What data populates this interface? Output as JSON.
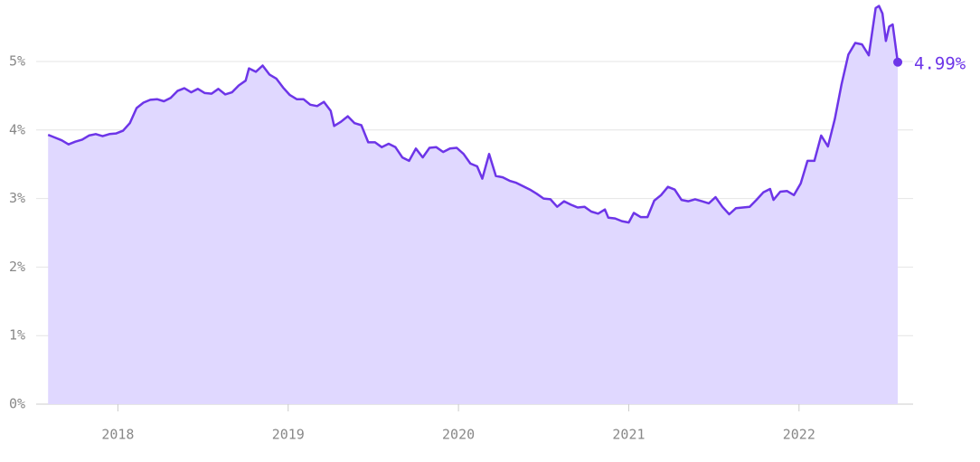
{
  "chart_data": {
    "type": "area",
    "x": [
      2017.59,
      2017.63,
      2017.67,
      2017.71,
      2017.75,
      2017.79,
      2017.83,
      2017.87,
      2017.91,
      2017.95,
      2017.99,
      2018.03,
      2018.07,
      2018.11,
      2018.15,
      2018.19,
      2018.23,
      2018.27,
      2018.31,
      2018.35,
      2018.39,
      2018.43,
      2018.47,
      2018.51,
      2018.55,
      2018.59,
      2018.63,
      2018.67,
      2018.71,
      2018.75,
      2018.77,
      2018.81,
      2018.85,
      2018.89,
      2018.93,
      2018.97,
      2019.01,
      2019.05,
      2019.09,
      2019.13,
      2019.17,
      2019.21,
      2019.25,
      2019.27,
      2019.31,
      2019.35,
      2019.39,
      2019.43,
      2019.47,
      2019.51,
      2019.55,
      2019.59,
      2019.63,
      2019.67,
      2019.71,
      2019.75,
      2019.79,
      2019.83,
      2019.87,
      2019.91,
      2019.95,
      2019.99,
      2020.03,
      2020.07,
      2020.11,
      2020.14,
      2020.18,
      2020.22,
      2020.26,
      2020.3,
      2020.34,
      2020.38,
      2020.42,
      2020.46,
      2020.5,
      2020.54,
      2020.58,
      2020.62,
      2020.66,
      2020.7,
      2020.74,
      2020.78,
      2020.82,
      2020.86,
      2020.88,
      2020.92,
      2020.96,
      2021.0,
      2021.03,
      2021.07,
      2021.11,
      2021.15,
      2021.19,
      2021.23,
      2021.27,
      2021.31,
      2021.35,
      2021.39,
      2021.43,
      2021.47,
      2021.51,
      2021.55,
      2021.59,
      2021.63,
      2021.67,
      2021.71,
      2021.75,
      2021.79,
      2021.83,
      2021.85,
      2021.89,
      2021.93,
      2021.97,
      2022.01,
      2022.05,
      2022.09,
      2022.13,
      2022.17,
      2022.21,
      2022.25,
      2022.29,
      2022.33,
      2022.37,
      2022.41,
      2022.45,
      2022.47,
      2022.49,
      2022.51,
      2022.53,
      2022.55,
      2022.58
    ],
    "values": [
      3.93,
      3.89,
      3.85,
      3.79,
      3.83,
      3.86,
      3.92,
      3.94,
      3.91,
      3.94,
      3.95,
      3.99,
      4.1,
      4.32,
      4.4,
      4.44,
      4.45,
      4.42,
      4.47,
      4.57,
      4.61,
      4.55,
      4.6,
      4.54,
      4.53,
      4.6,
      4.52,
      4.55,
      4.65,
      4.72,
      4.9,
      4.85,
      4.94,
      4.81,
      4.75,
      4.62,
      4.51,
      4.45,
      4.45,
      4.37,
      4.35,
      4.41,
      4.28,
      4.06,
      4.12,
      4.2,
      4.1,
      4.07,
      3.82,
      3.82,
      3.75,
      3.8,
      3.75,
      3.6,
      3.55,
      3.73,
      3.6,
      3.74,
      3.75,
      3.68,
      3.73,
      3.74,
      3.65,
      3.51,
      3.47,
      3.29,
      3.65,
      3.33,
      3.31,
      3.26,
      3.23,
      3.18,
      3.13,
      3.07,
      3.0,
      2.99,
      2.88,
      2.96,
      2.91,
      2.87,
      2.88,
      2.81,
      2.78,
      2.84,
      2.72,
      2.71,
      2.67,
      2.65,
      2.79,
      2.73,
      2.73,
      2.97,
      3.05,
      3.17,
      3.13,
      2.98,
      2.96,
      2.99,
      2.96,
      2.93,
      3.02,
      2.88,
      2.77,
      2.86,
      2.87,
      2.88,
      2.98,
      3.09,
      3.14,
      2.98,
      3.1,
      3.11,
      3.05,
      3.22,
      3.55,
      3.55,
      3.92,
      3.76,
      4.16,
      4.67,
      5.1,
      5.27,
      5.25,
      5.09,
      5.78,
      5.81,
      5.7,
      5.3,
      5.51,
      5.54,
      4.99
    ],
    "annotation": "4.99%",
    "color": "#6d35e8",
    "fill_color": "#e0d8ff",
    "xlim": [
      2017.52,
      2022.67
    ],
    "xticks": [
      2018,
      2019,
      2020,
      2021,
      2022
    ],
    "ylim": [
      0,
      5.8
    ],
    "yticks": [
      {
        "value": 0,
        "label": "0%"
      },
      {
        "value": 1,
        "label": "1%"
      },
      {
        "value": 2,
        "label": "2%"
      },
      {
        "value": 3,
        "label": "3%"
      },
      {
        "value": 4,
        "label": "4%"
      },
      {
        "value": 5,
        "label": "5%"
      }
    ],
    "grid": true
  }
}
